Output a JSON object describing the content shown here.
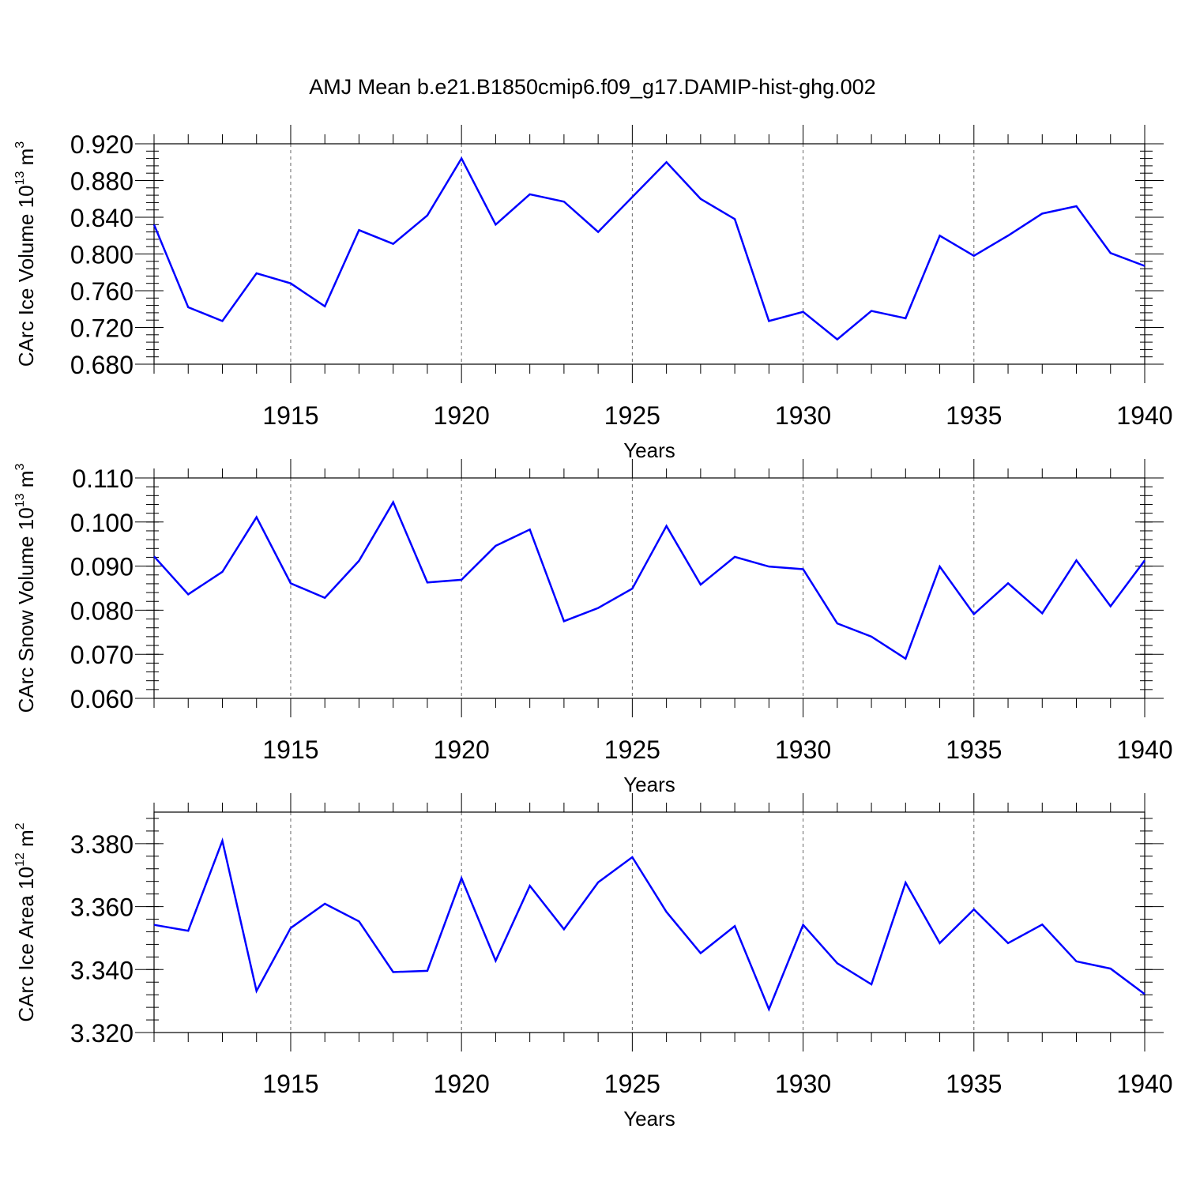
{
  "title": "AMJ Mean b.e21.B1850cmip6.f09_g17.DAMIP-hist-ghg.002",
  "line_color": "#0000ff",
  "chart_data": [
    {
      "type": "line",
      "title": "",
      "xlabel": "Years",
      "ylabel": "CArc Ice Volume",
      "ylabel_unit_base": "10",
      "ylabel_unit_exp": "13",
      "ylabel_unit_tail": "m",
      "ylabel_unit_tail_exp": "3",
      "xlim": [
        1911,
        1940
      ],
      "ylim": [
        0.68,
        0.92
      ],
      "grid": true,
      "x_ticks": [
        "1915",
        "1920",
        "1925",
        "1930",
        "1935",
        "1940"
      ],
      "y_ticks": [
        "0.680",
        "0.720",
        "0.760",
        "0.800",
        "0.840",
        "0.880",
        "0.920"
      ],
      "x": [
        1911,
        1912,
        1913,
        1914,
        1915,
        1916,
        1917,
        1918,
        1919,
        1920,
        1921,
        1922,
        1923,
        1924,
        1925,
        1926,
        1927,
        1928,
        1929,
        1930,
        1931,
        1932,
        1933,
        1934,
        1935,
        1936,
        1937,
        1938,
        1939,
        1940
      ],
      "values": [
        0.832,
        0.742,
        0.727,
        0.779,
        0.768,
        0.743,
        0.826,
        0.811,
        0.842,
        0.904,
        0.832,
        0.865,
        0.857,
        0.824,
        0.862,
        0.9,
        0.86,
        0.838,
        0.727,
        0.737,
        0.707,
        0.738,
        0.73,
        0.82,
        0.798,
        0.82,
        0.844,
        0.852,
        0.801,
        0.787
      ]
    },
    {
      "type": "line",
      "title": "",
      "xlabel": "Years",
      "ylabel": "CArc Snow Volume",
      "ylabel_unit_base": "10",
      "ylabel_unit_exp": "13",
      "ylabel_unit_tail": "m",
      "ylabel_unit_tail_exp": "3",
      "xlim": [
        1911,
        1940
      ],
      "ylim": [
        0.06,
        0.11
      ],
      "grid": true,
      "x_ticks": [
        "1915",
        "1920",
        "1925",
        "1930",
        "1935",
        "1940"
      ],
      "y_ticks": [
        "0.060",
        "0.070",
        "0.080",
        "0.090",
        "0.100",
        "0.110"
      ],
      "x": [
        1911,
        1912,
        1913,
        1914,
        1915,
        1916,
        1917,
        1918,
        1919,
        1920,
        1921,
        1922,
        1923,
        1924,
        1925,
        1926,
        1927,
        1928,
        1929,
        1930,
        1931,
        1932,
        1933,
        1934,
        1935,
        1936,
        1937,
        1938,
        1939,
        1940
      ],
      "values": [
        0.0922,
        0.0836,
        0.0887,
        0.1011,
        0.0861,
        0.0828,
        0.0912,
        0.1045,
        0.0863,
        0.0869,
        0.0946,
        0.0983,
        0.0775,
        0.0805,
        0.0849,
        0.0991,
        0.0858,
        0.0921,
        0.0899,
        0.0893,
        0.077,
        0.074,
        0.069,
        0.0899,
        0.0791,
        0.0861,
        0.0793,
        0.0913,
        0.0809,
        0.0913
      ]
    },
    {
      "type": "line",
      "title": "",
      "xlabel": "Years",
      "ylabel": "CArc Ice Area",
      "ylabel_unit_base": "10",
      "ylabel_unit_exp": "12",
      "ylabel_unit_tail": "m",
      "ylabel_unit_tail_exp": "2",
      "xlim": [
        1911,
        1940
      ],
      "ylim": [
        3.32,
        3.39
      ],
      "grid": true,
      "x_ticks": [
        "1915",
        "1920",
        "1925",
        "1930",
        "1935",
        "1940"
      ],
      "y_ticks": [
        "3.320",
        "3.340",
        "3.360",
        "3.380"
      ],
      "x": [
        1911,
        1912,
        1913,
        1914,
        1915,
        1916,
        1917,
        1918,
        1919,
        1920,
        1921,
        1922,
        1923,
        1924,
        1925,
        1926,
        1927,
        1928,
        1929,
        1930,
        1931,
        1932,
        1933,
        1934,
        1935,
        1936,
        1937,
        1938,
        1939,
        1940
      ],
      "values": [
        3.3542,
        3.3523,
        3.3809,
        3.3332,
        3.3532,
        3.3609,
        3.3553,
        3.3392,
        3.3396,
        3.369,
        3.3428,
        3.3666,
        3.3528,
        3.3677,
        3.3757,
        3.3583,
        3.3452,
        3.3538,
        3.3274,
        3.3542,
        3.342,
        3.3353,
        3.3676,
        3.3484,
        3.3591,
        3.3484,
        3.3543,
        3.3426,
        3.3403,
        3.3322
      ]
    }
  ]
}
